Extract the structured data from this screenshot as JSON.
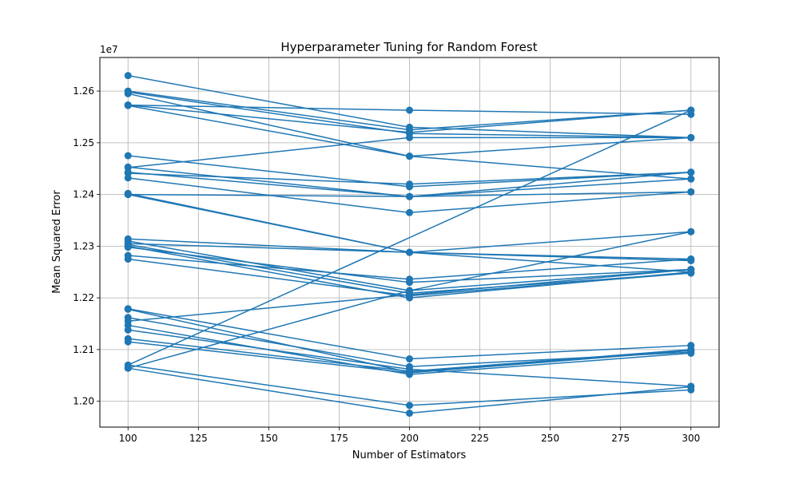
{
  "chart_data": {
    "type": "line",
    "title": "Hyperparameter Tuning for Random Forest",
    "xlabel": "Number of Estimators",
    "ylabel": "Mean Squared Error",
    "y_offset_label": "1e7",
    "y_scale": 10000000,
    "xlim": [
      90,
      310
    ],
    "ylim": [
      11950000,
      12665000
    ],
    "x_ticks": [
      100,
      125,
      150,
      175,
      200,
      225,
      250,
      275,
      300
    ],
    "x_tick_labels": [
      "100",
      "125",
      "150",
      "175",
      "200",
      "225",
      "250",
      "275",
      "300"
    ],
    "y_ticks": [
      12000000,
      12100000,
      12200000,
      12300000,
      12400000,
      12500000,
      12600000
    ],
    "y_tick_labels": [
      "1.20",
      "1.21",
      "1.22",
      "1.23",
      "1.24",
      "1.25",
      "1.26"
    ],
    "grid": true,
    "line_color": "#1f77b4",
    "marker": "circle",
    "x": [
      100,
      200,
      300
    ],
    "series": [
      {
        "values": [
          12630000,
          12530000,
          12510000
        ]
      },
      {
        "values": [
          12600000,
          12525000,
          12563000
        ]
      },
      {
        "values": [
          12598000,
          12518000,
          12510000
        ]
      },
      {
        "values": [
          12595000,
          12474000,
          12430000
        ]
      },
      {
        "values": [
          12572000,
          12474000,
          12510000
        ]
      },
      {
        "values": [
          12573000,
          12520000,
          12563000
        ]
      },
      {
        "values": [
          12573000,
          12563000,
          12555000
        ]
      },
      {
        "values": [
          12475000,
          12415000,
          12443000
        ]
      },
      {
        "values": [
          12453000,
          12396000,
          12443000
        ]
      },
      {
        "values": [
          12452000,
          12510000,
          12510000
        ]
      },
      {
        "values": [
          12443000,
          12396000,
          12430000
        ]
      },
      {
        "values": [
          12441000,
          12420000,
          12443000
        ]
      },
      {
        "values": [
          12432000,
          12365000,
          12405000
        ]
      },
      {
        "values": [
          12402000,
          12288000,
          12275000
        ]
      },
      {
        "values": [
          12400000,
          12288000,
          12250000
        ]
      },
      {
        "values": [
          12400000,
          12396000,
          12405000
        ]
      },
      {
        "values": [
          12314000,
          12288000,
          12328000
        ]
      },
      {
        "values": [
          12310000,
          12214000,
          12255000
        ]
      },
      {
        "values": [
          12305000,
          12288000,
          12272000
        ]
      },
      {
        "values": [
          12303000,
          12209000,
          12248000
        ]
      },
      {
        "values": [
          12300000,
          12200000,
          12250000
        ]
      },
      {
        "values": [
          12298000,
          12230000,
          12255000
        ]
      },
      {
        "values": [
          12282000,
          12236000,
          12275000
        ]
      },
      {
        "values": [
          12275000,
          12204000,
          12248000
        ]
      },
      {
        "values": [
          12179000,
          12082000,
          12108000
        ]
      },
      {
        "values": [
          12178000,
          12056000,
          12100000
        ]
      },
      {
        "values": [
          12162000,
          12067000,
          12095000
        ]
      },
      {
        "values": [
          12155000,
          12206000,
          12255000
        ]
      },
      {
        "values": [
          12147000,
          12052000,
          12093000
        ]
      },
      {
        "values": [
          12138000,
          12062000,
          12029000
        ]
      },
      {
        "values": [
          12121000,
          12058000,
          12100000
        ]
      },
      {
        "values": [
          12115000,
          12055000,
          12098000
        ]
      },
      {
        "values": [
          12070000,
          11992000,
          12022000
        ]
      },
      {
        "values": [
          12064000,
          11977000,
          12028000
        ]
      },
      {
        "values": [
          12064000,
          12214000,
          12328000
        ]
      }
    ],
    "cross_segments": [
      {
        "x": [
          100,
          300
        ],
        "y": [
          12070000,
          12563000
        ]
      }
    ]
  }
}
